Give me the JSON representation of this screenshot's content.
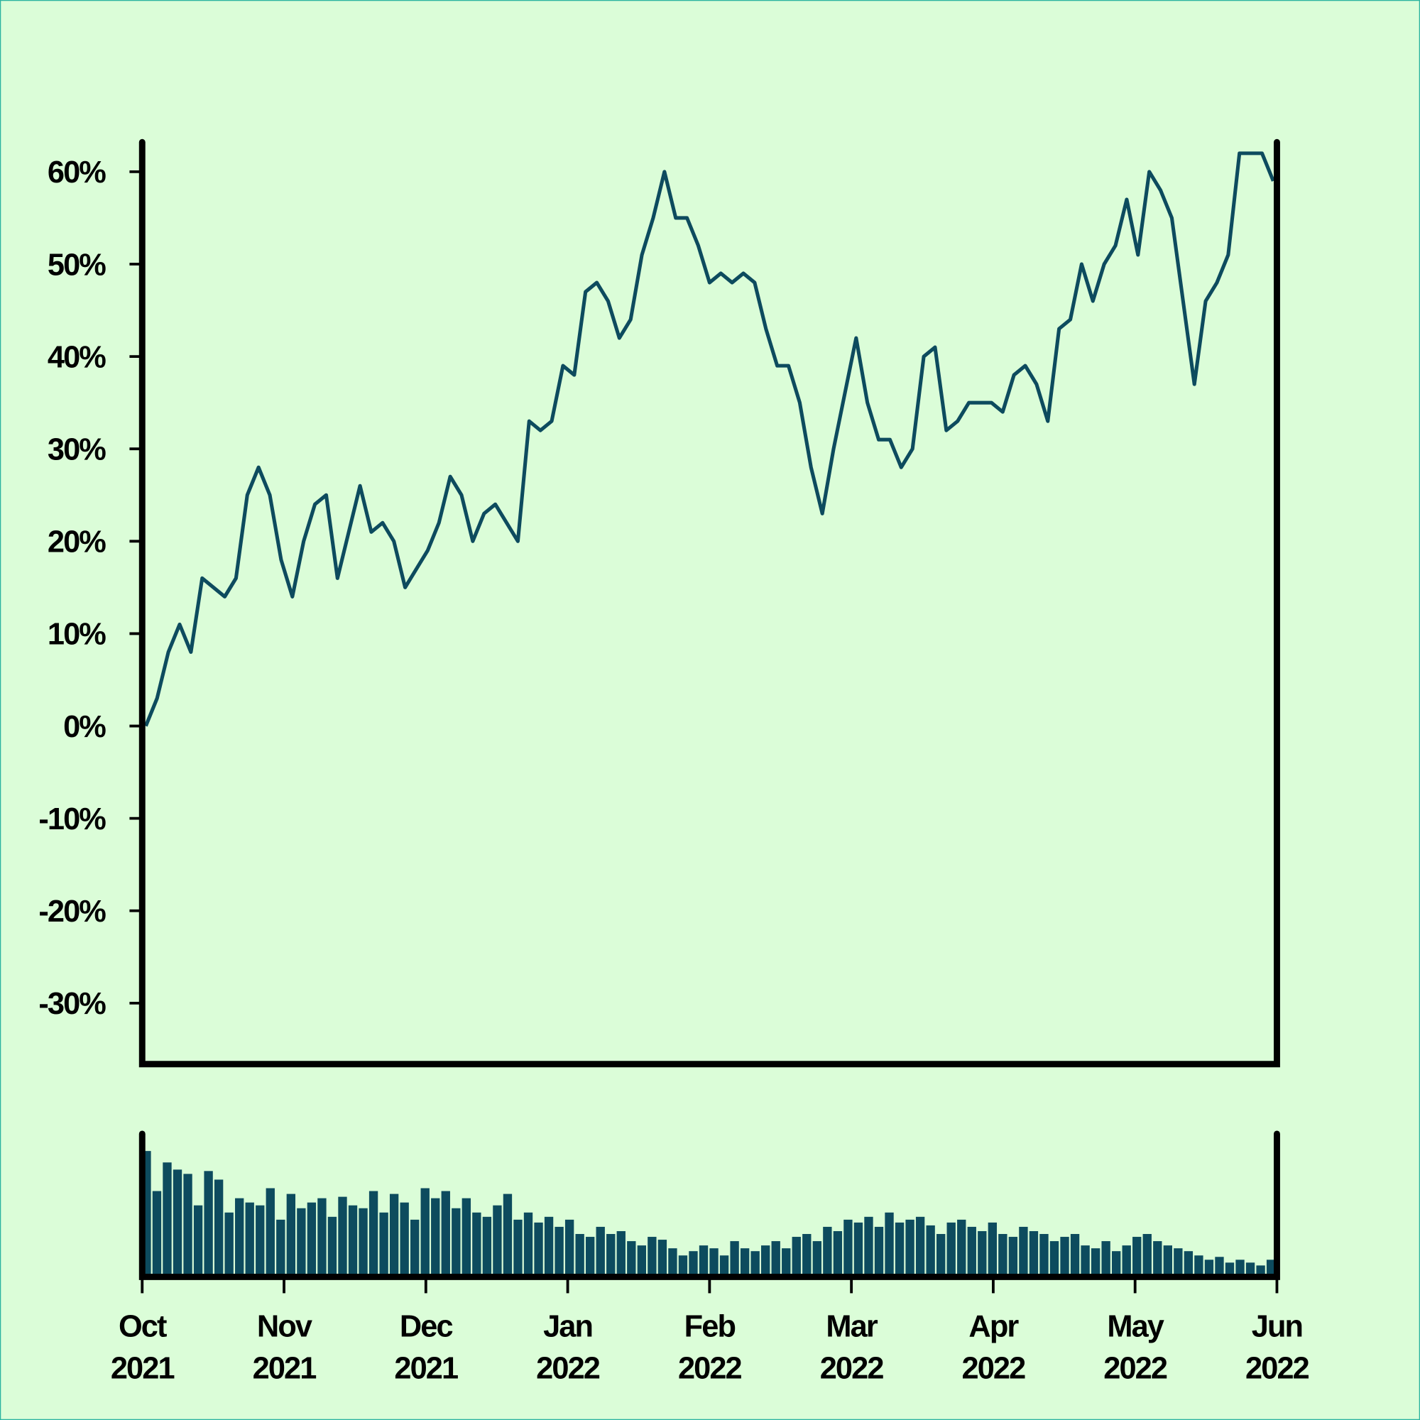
{
  "chart_data": [
    {
      "type": "line",
      "color": "#0d4b5e",
      "values": [
        0,
        3,
        8,
        11,
        8,
        16,
        15,
        14,
        16,
        25,
        28,
        25,
        18,
        14,
        20,
        24,
        25,
        16,
        21,
        26,
        21,
        22,
        20,
        15,
        17,
        19,
        22,
        27,
        25,
        20,
        23,
        24,
        22,
        20,
        33,
        32,
        33,
        39,
        38,
        47,
        48,
        46,
        42,
        44,
        51,
        55,
        60,
        55,
        55,
        52,
        48,
        49,
        48,
        49,
        48,
        43,
        39,
        39,
        35,
        28,
        23,
        30,
        36,
        42,
        35,
        31,
        31,
        28,
        30,
        40,
        41,
        32,
        33,
        35,
        35,
        35,
        34,
        38,
        39,
        37,
        33,
        43,
        44,
        50,
        46,
        50,
        52,
        57,
        51,
        60,
        58,
        55,
        46,
        37,
        46,
        48,
        51,
        62,
        62,
        62,
        59
      ],
      "ylim": [
        -36.6,
        63.2
      ],
      "yticks": [
        {
          "value": -30,
          "label": "-30%"
        },
        {
          "value": -20,
          "label": "-20%"
        },
        {
          "value": -10,
          "label": "-10%"
        },
        {
          "value": 0,
          "label": "0%"
        },
        {
          "value": 10,
          "label": "10%"
        },
        {
          "value": 20,
          "label": "20%"
        },
        {
          "value": 30,
          "label": "30%"
        },
        {
          "value": 40,
          "label": "40%"
        },
        {
          "value": 50,
          "label": "50%"
        },
        {
          "value": 60,
          "label": "60%"
        }
      ]
    },
    {
      "type": "bar",
      "color": "#0d4b5e",
      "values": [
        88,
        60,
        80,
        75,
        72,
        50,
        74,
        68,
        45,
        55,
        52,
        50,
        62,
        40,
        58,
        48,
        52,
        55,
        42,
        56,
        50,
        48,
        60,
        45,
        58,
        52,
        40,
        62,
        55,
        60,
        48,
        55,
        45,
        42,
        50,
        58,
        40,
        45,
        38,
        42,
        35,
        40,
        30,
        28,
        35,
        30,
        32,
        25,
        22,
        28,
        26,
        20,
        15,
        18,
        22,
        20,
        15,
        25,
        20,
        18,
        22,
        25,
        20,
        28,
        30,
        25,
        35,
        32,
        40,
        38,
        42,
        35,
        45,
        38,
        40,
        42,
        36,
        30,
        38,
        40,
        35,
        32,
        38,
        30,
        28,
        35,
        32,
        30,
        25,
        28,
        30,
        22,
        20,
        25,
        18,
        22,
        28,
        30,
        25,
        22,
        20,
        18,
        15,
        12,
        14,
        10,
        12,
        10,
        8,
        12
      ],
      "ylim": [
        0,
        100
      ]
    },
    {
      "type": "time-axis",
      "xlim": [
        "2021-10",
        "2022-06"
      ],
      "xticks": [
        {
          "value": "2021-10",
          "label": "Oct 2021"
        },
        {
          "value": "2021-11",
          "label": "Nov 2021"
        },
        {
          "value": "2021-12",
          "label": "Dec 2021"
        },
        {
          "value": "2022-01",
          "label": "Jan 2022"
        },
        {
          "value": "2022-02",
          "label": "Feb 2022"
        },
        {
          "value": "2022-03",
          "label": "Mar 2022"
        },
        {
          "value": "2022-04",
          "label": "Apr 2022"
        },
        {
          "value": "2022-05",
          "label": "May 2022"
        },
        {
          "value": "2022-06",
          "label": "Jun 2022"
        }
      ]
    }
  ]
}
